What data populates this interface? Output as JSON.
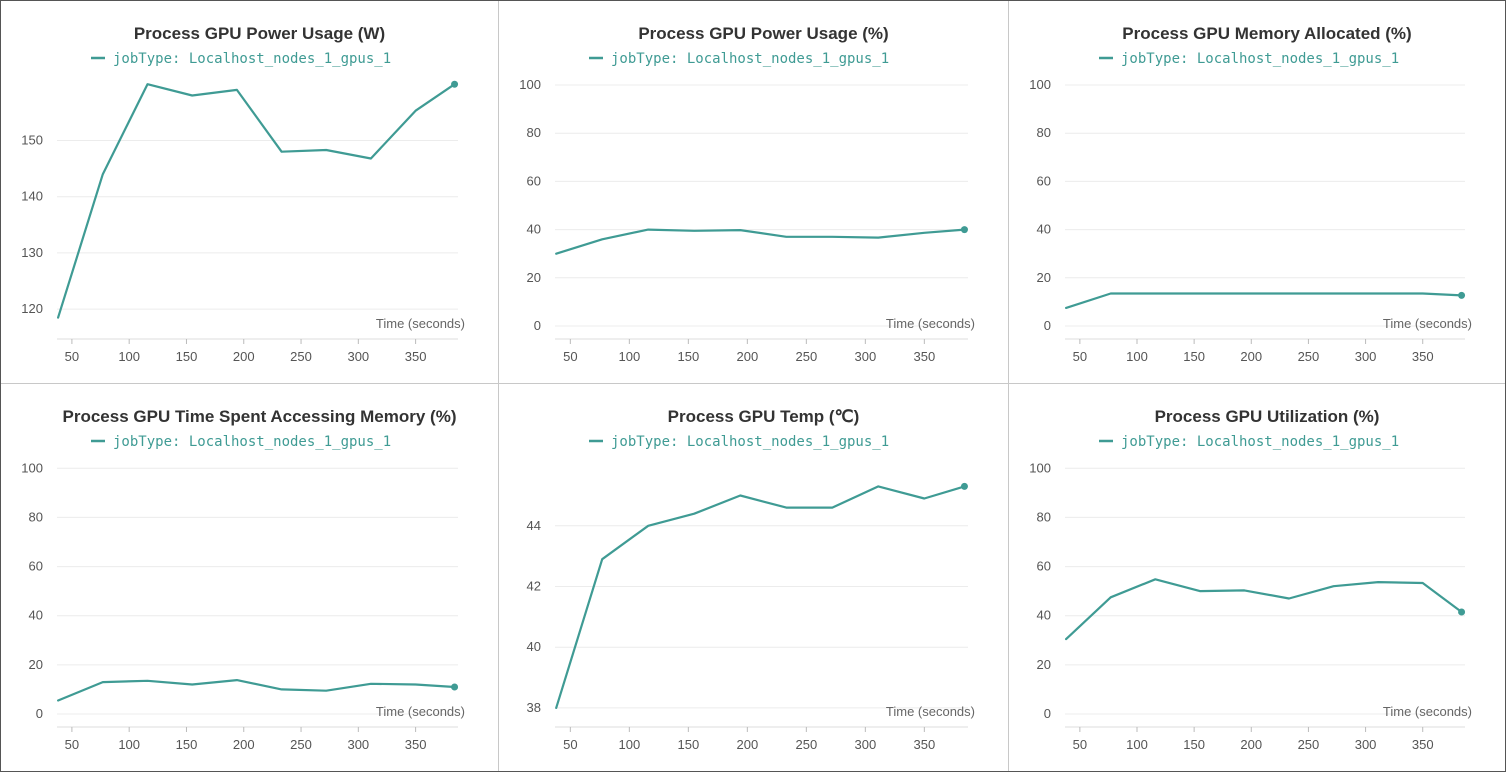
{
  "series_color": "#3f9b94",
  "chart_data": [
    {
      "type": "line",
      "title": "Process GPU Power Usage (W)",
      "legend": "jobType: Localhost_nodes_1_gpus_1",
      "xlabel": "Time (seconds)",
      "ylabel": "",
      "xlim": [
        37,
        387
      ],
      "ylim": [
        117,
        162
      ],
      "xticks": [
        50,
        100,
        150,
        200,
        250,
        300,
        350
      ],
      "yticks": [
        120,
        130,
        140,
        150
      ],
      "x": [
        38,
        77,
        116,
        155,
        194,
        233,
        272,
        311,
        350,
        384
      ],
      "series": [
        {
          "name": "jobType: Localhost_nodes_1_gpus_1",
          "values": [
            118.5,
            144,
            160,
            158,
            159,
            148,
            148.3,
            146.8,
            155.3,
            160
          ]
        }
      ]
    },
    {
      "type": "line",
      "title": "Process GPU Power Usage (%)",
      "legend": "jobType: Localhost_nodes_1_gpus_1",
      "xlabel": "Time (seconds)",
      "ylabel": "",
      "xlim": [
        37,
        387
      ],
      "ylim": [
        0,
        105
      ],
      "xticks": [
        50,
        100,
        150,
        200,
        250,
        300,
        350
      ],
      "yticks": [
        0,
        20,
        40,
        60,
        80,
        100
      ],
      "x": [
        38,
        77,
        116,
        155,
        194,
        233,
        272,
        311,
        350,
        384
      ],
      "series": [
        {
          "name": "jobType: Localhost_nodes_1_gpus_1",
          "values": [
            30,
            36,
            40,
            39.5,
            39.8,
            37,
            37,
            36.7,
            38.7,
            40
          ]
        }
      ]
    },
    {
      "type": "line",
      "title": "Process GPU Memory Allocated (%)",
      "legend": "jobType: Localhost_nodes_1_gpus_1",
      "xlabel": "Time (seconds)",
      "ylabel": "",
      "xlim": [
        37,
        387
      ],
      "ylim": [
        0,
        105
      ],
      "xticks": [
        50,
        100,
        150,
        200,
        250,
        300,
        350
      ],
      "yticks": [
        0,
        20,
        40,
        60,
        80,
        100
      ],
      "x": [
        38,
        77,
        116,
        155,
        194,
        233,
        272,
        311,
        350,
        384
      ],
      "series": [
        {
          "name": "jobType: Localhost_nodes_1_gpus_1",
          "values": [
            7.5,
            13.5,
            13.5,
            13.5,
            13.5,
            13.5,
            13.5,
            13.5,
            13.5,
            12.7
          ]
        }
      ]
    },
    {
      "type": "line",
      "title": "Process GPU Time Spent Accessing Memory (%)",
      "legend": "jobType: Localhost_nodes_1_gpus_1",
      "xlabel": "Time (seconds)",
      "ylabel": "",
      "xlim": [
        37,
        387
      ],
      "ylim": [
        0,
        105
      ],
      "xticks": [
        50,
        100,
        150,
        200,
        250,
        300,
        350
      ],
      "yticks": [
        0,
        20,
        40,
        60,
        80,
        100
      ],
      "x": [
        38,
        77,
        116,
        155,
        194,
        233,
        272,
        311,
        350,
        384
      ],
      "series": [
        {
          "name": "jobType: Localhost_nodes_1_gpus_1",
          "values": [
            5.5,
            13,
            13.5,
            12,
            13.8,
            10,
            9.5,
            12.3,
            12,
            11
          ]
        }
      ]
    },
    {
      "type": "line",
      "title": "Process GPU Temp (℃)",
      "legend": "jobType: Localhost_nodes_1_gpus_1",
      "xlabel": "Time (seconds)",
      "ylabel": "",
      "xlim": [
        37,
        387
      ],
      "ylim": [
        37.8,
        46.3
      ],
      "xticks": [
        50,
        100,
        150,
        200,
        250,
        300,
        350
      ],
      "yticks": [
        38,
        40,
        42,
        44
      ],
      "x": [
        38,
        77,
        116,
        155,
        194,
        233,
        272,
        311,
        350,
        384
      ],
      "series": [
        {
          "name": "jobType: Localhost_nodes_1_gpus_1",
          "values": [
            38,
            42.9,
            44,
            44.4,
            45,
            44.6,
            44.6,
            45.3,
            44.9,
            45.3
          ]
        }
      ]
    },
    {
      "type": "line",
      "title": "Process GPU Utilization (%)",
      "legend": "jobType: Localhost_nodes_1_gpus_1",
      "xlabel": "Time (seconds)",
      "ylabel": "",
      "xlim": [
        37,
        387
      ],
      "ylim": [
        0,
        105
      ],
      "xticks": [
        50,
        100,
        150,
        200,
        250,
        300,
        350
      ],
      "yticks": [
        0,
        20,
        40,
        60,
        80,
        100
      ],
      "x": [
        38,
        77,
        116,
        155,
        194,
        233,
        272,
        311,
        350,
        384
      ],
      "series": [
        {
          "name": "jobType: Localhost_nodes_1_gpus_1",
          "values": [
            30.5,
            47.5,
            54.8,
            50,
            50.3,
            47,
            52,
            53.7,
            53.3,
            41.5
          ]
        }
      ]
    }
  ]
}
